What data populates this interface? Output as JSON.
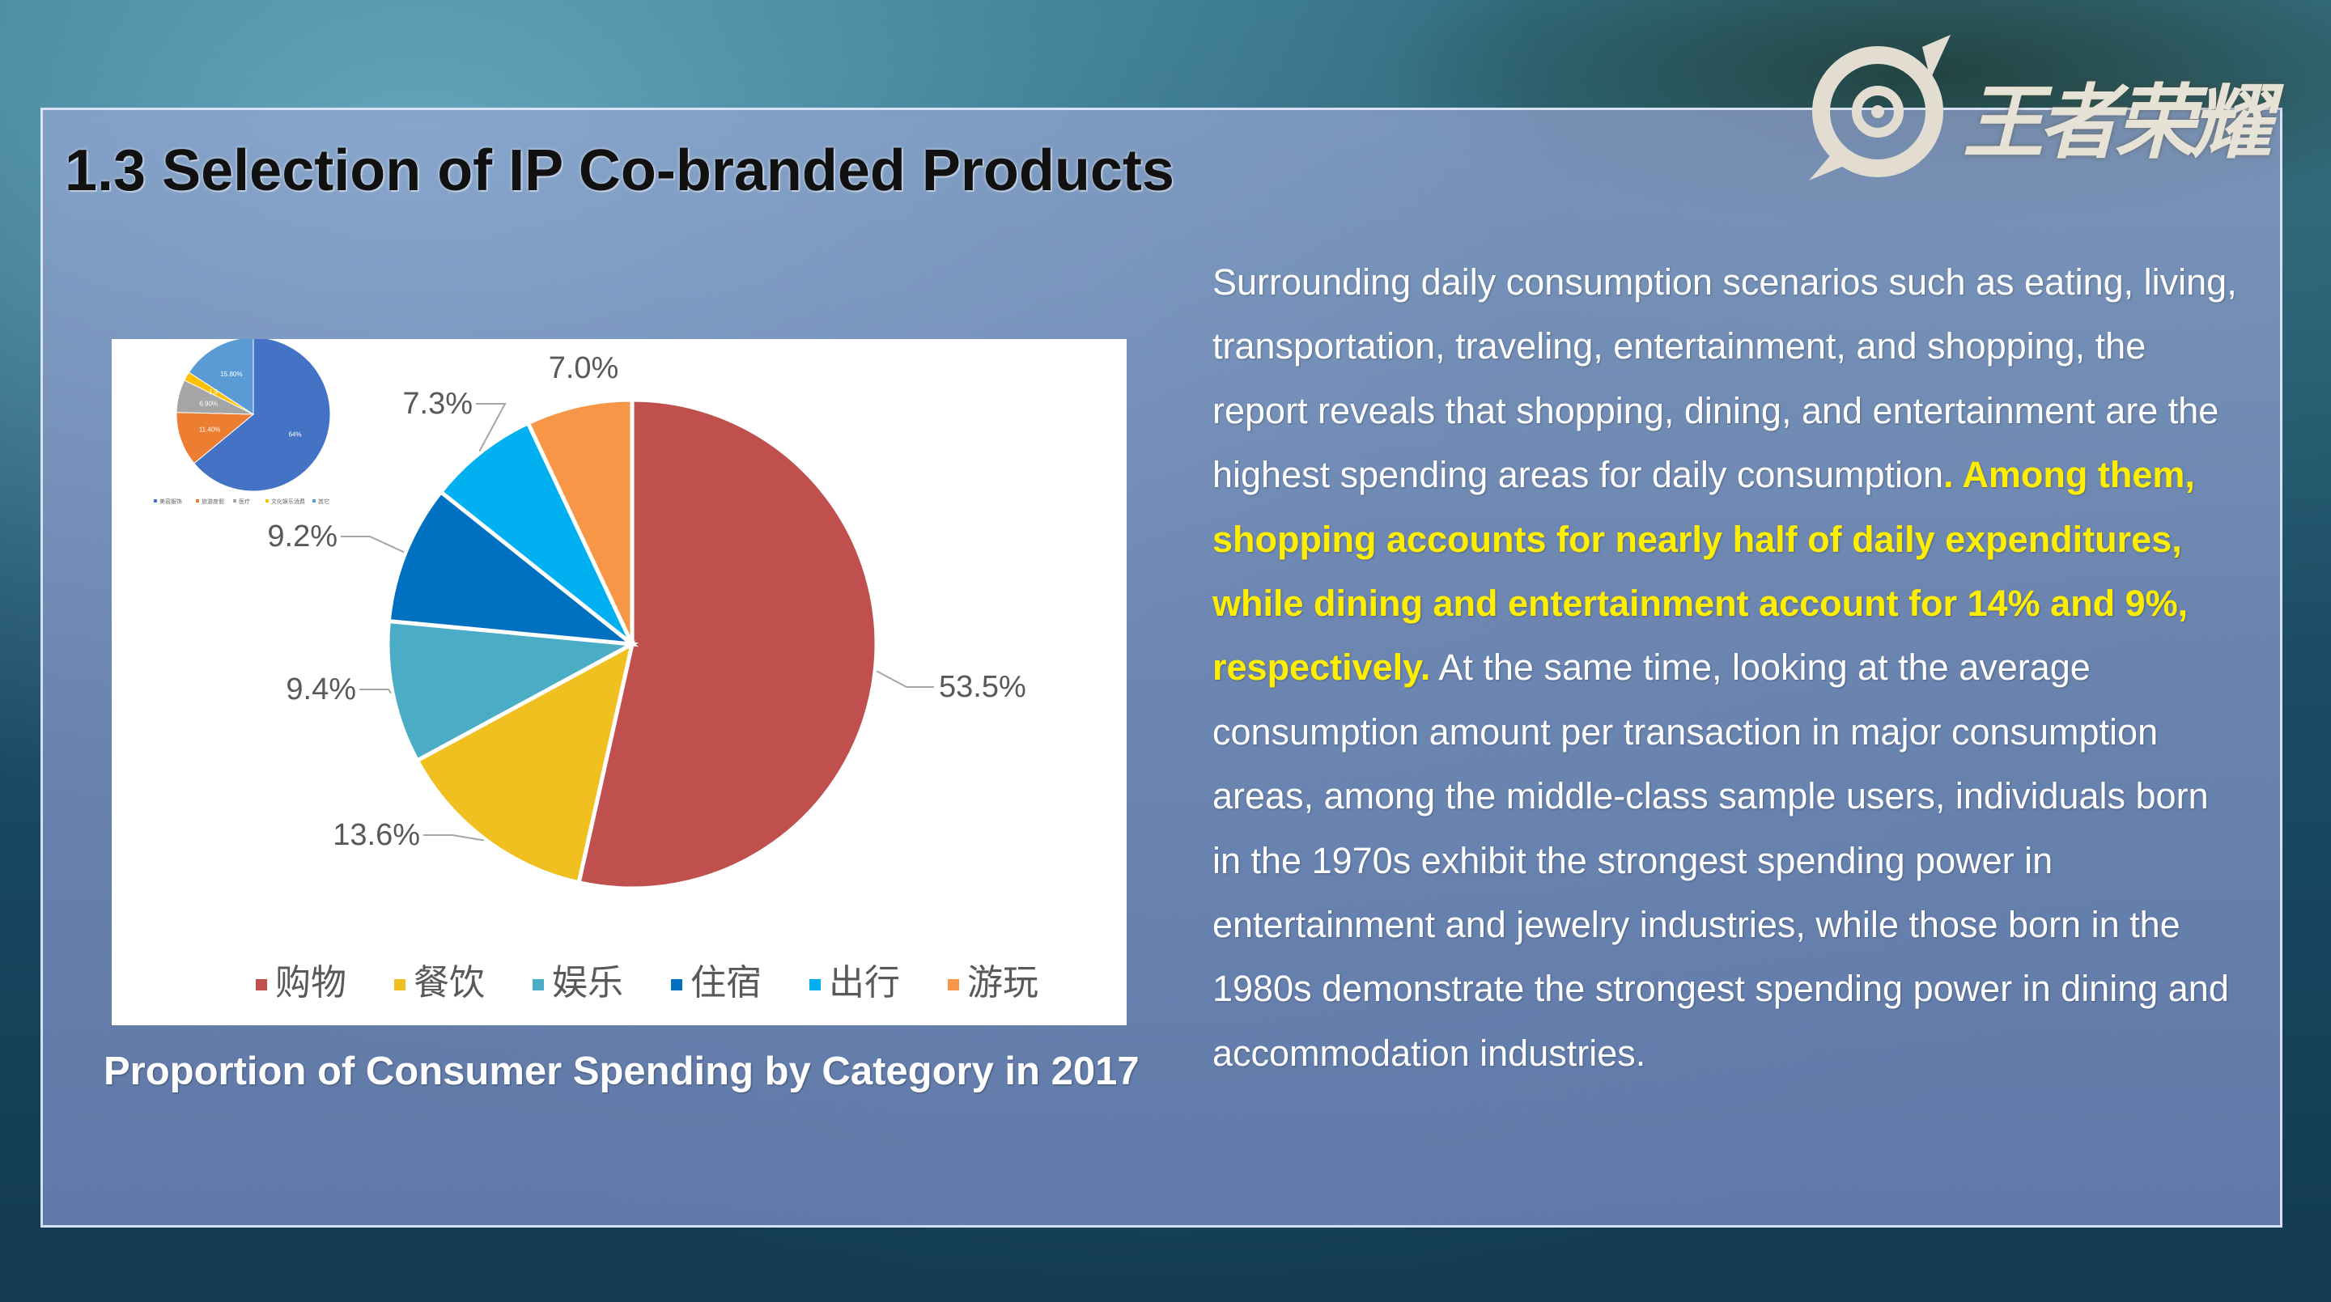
{
  "slide": {
    "title": "1.3  Selection of IP Co-branded Products",
    "logo_text": "王者荣耀",
    "caption": "Proportion of Consumer Spending by Category in 2017"
  },
  "paragraph": {
    "part1": "Surrounding daily consumption scenarios such as eating, living, transportation, traveling, entertainment, and shopping, the report reveals that shopping, dining, and entertainment are the highest spending areas for daily consumption",
    "highlight": ". Among them, shopping accounts for nearly half of daily expenditures, while dining and entertainment account for 14% and 9%, respectively.",
    "part2": " At the same time, looking at the average consumption amount per transaction in major consumption areas, among the middle-class sample users, individuals born in the 1970s exhibit the strongest spending power in entertainment and jewelry industries, while those born in the 1980s demonstrate the strongest spending power in dining and accommodation industries."
  },
  "chart_data": [
    {
      "type": "pie",
      "categories": [
        "购物",
        "餐饮",
        "娱乐",
        "住宿",
        "出行",
        "游玩"
      ],
      "values": [
        53.5,
        13.6,
        9.4,
        9.2,
        7.3,
        7.0
      ],
      "labels": [
        "53.5%",
        "13.6%",
        "9.4%",
        "9.2%",
        "7.3%",
        "7.0%"
      ],
      "colors": [
        "#c0504d",
        "#f0c020",
        "#4bacc6",
        "#0070c0",
        "#00b0f0",
        "#f79646"
      ],
      "legend_position": "bottom"
    },
    {
      "type": "pie",
      "categories": [
        "美容服饰",
        "旅游度假",
        "医疗",
        "文化娱乐消费",
        "其它"
      ],
      "values": [
        64,
        11.4,
        6.9,
        1.9,
        15.8
      ],
      "labels": [
        "64%",
        "11.40%",
        "6.90%",
        "1.9",
        "15.80%"
      ],
      "colors": [
        "#4472c4",
        "#ed7d31",
        "#a5a5a5",
        "#ffc000",
        "#5b9bd5"
      ],
      "legend_position": "bottom"
    }
  ]
}
